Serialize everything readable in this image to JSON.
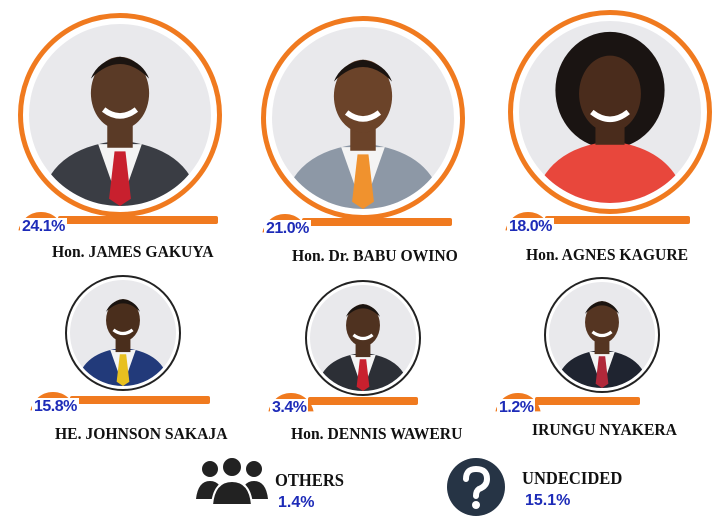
{
  "chart_data": {
    "type": "bar",
    "title": "",
    "categories": [
      "Hon. JAMES GAKUYA",
      "Hon. Dr. BABU OWINO",
      "Hon. AGNES KAGURE",
      "HE. JOHNSON SAKAJA",
      "Hon. DENNIS WAWERU",
      "IRUNGU NYAKERA",
      "OTHERS",
      "UNDECIDED"
    ],
    "values": [
      24.1,
      21.0,
      18.0,
      15.8,
      3.4,
      1.2,
      1.4,
      15.1
    ],
    "labels": [
      "24.1%",
      "21.0%",
      "18.0%",
      "15.8%",
      "3.4%",
      "1.2%",
      "1.4%",
      "15.1%"
    ]
  },
  "candidates": [
    {
      "name": "Hon. JAMES GAKUYA",
      "pct": "24.1%",
      "value": 24.1,
      "tie": "#c8202e",
      "suit": "#3a3d44",
      "skin": "#5a3a26"
    },
    {
      "name": "Hon. Dr. BABU OWINO",
      "pct": "21.0%",
      "value": 21.0,
      "tie": "#f0922e",
      "suit": "#8d98a6",
      "skin": "#6b4329"
    },
    {
      "name": "Hon. AGNES KAGURE",
      "pct": "18.0%",
      "value": 18.0,
      "tie": "#e8473c",
      "suit": "#e8473c",
      "skin": "#4a2c1c"
    },
    {
      "name": "HE. JOHNSON SAKAJA",
      "pct": "15.8%",
      "value": 15.8,
      "tie": "#e8c020",
      "suit": "#223a7a",
      "skin": "#4a2e1c"
    },
    {
      "name": "Hon. DENNIS WAWERU",
      "pct": "3.4%",
      "value": 3.4,
      "tie": "#c8202e",
      "suit": "#2c2f36",
      "skin": "#4f3220"
    },
    {
      "name": "IRUNGU NYAKERA",
      "pct": "1.2%",
      "value": 1.2,
      "tie": "#b0283a",
      "suit": "#1f2430",
      "skin": "#553522"
    }
  ],
  "others": {
    "label": "OTHERS",
    "pct": "1.4%",
    "icon": "people-group-icon"
  },
  "undecided": {
    "label": "UNDECIDED",
    "pct": "15.1%",
    "icon": "question-mark-icon"
  },
  "colors": {
    "accent": "#f07a1f",
    "percent_text": "#1d2bb8",
    "name_text": "#111111"
  }
}
